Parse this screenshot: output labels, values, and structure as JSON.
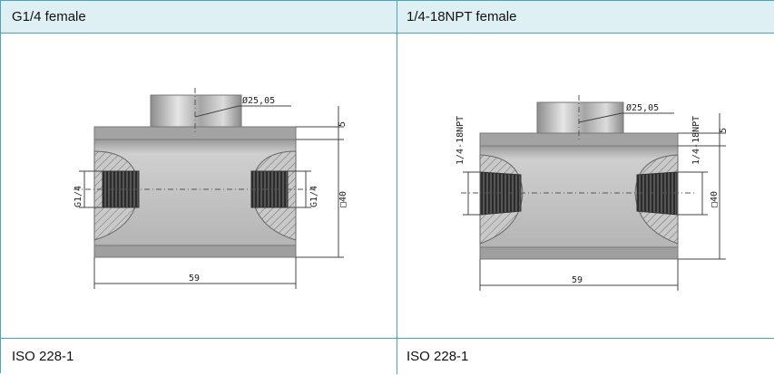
{
  "columns": [
    {
      "header": "G1/4 female",
      "footer": "ISO 228-1",
      "dims": {
        "diameter": "Ø25,05",
        "height": "5",
        "square": "□40",
        "width": "59",
        "thread_left": "G1/4",
        "thread_right": "G1/4"
      }
    },
    {
      "header": "1/4-18NPT female",
      "footer": "ISO 228-1",
      "dims": {
        "diameter": "Ø25,05",
        "height": "5",
        "square": "□40",
        "width": "59",
        "thread_left": "1/4-18NPT",
        "thread_right": "1/4-18NPT"
      }
    }
  ],
  "colors": {
    "border": "#4fa3b5",
    "header_bg": "#dff0f4",
    "body": "#bdbdbd"
  }
}
